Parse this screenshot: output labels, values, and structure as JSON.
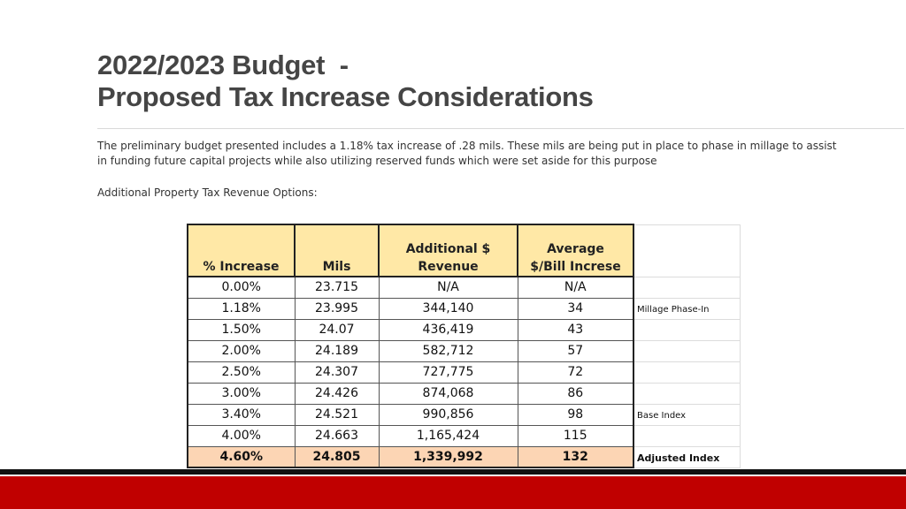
{
  "title": {
    "line1": "2022/2023 Budget  -",
    "line2": "Proposed Tax Increase Considerations"
  },
  "paragraph": "The preliminary budget presented includes a 1.18% tax increase of .28 mils.  These mils are being put in place to phase in millage to assist in funding future capital projects while also utilizing reserved funds which were set aside for this purpose",
  "options_label": "Additional Property Tax Revenue Options:",
  "table": {
    "headers": {
      "increase": "% Increase",
      "mils": "Mils",
      "revenue_l1": "Additional $",
      "revenue_l2": "Revenue",
      "bill_l1": "Average",
      "bill_l2": "$/Bill Increse"
    },
    "rows": [
      {
        "increase": "0.00%",
        "mils": "23.715",
        "revenue": "N/A",
        "bill": "N/A",
        "note": ""
      },
      {
        "increase": "1.18%",
        "mils": "23.995",
        "revenue": "344,140",
        "bill": "34",
        "note": "Millage Phase-In"
      },
      {
        "increase": "1.50%",
        "mils": "24.07",
        "revenue": "436,419",
        "bill": "43",
        "note": ""
      },
      {
        "increase": "2.00%",
        "mils": "24.189",
        "revenue": "582,712",
        "bill": "57",
        "note": ""
      },
      {
        "increase": "2.50%",
        "mils": "24.307",
        "revenue": "727,775",
        "bill": "72",
        "note": ""
      },
      {
        "increase": "3.00%",
        "mils": "24.426",
        "revenue": "874,068",
        "bill": "86",
        "note": ""
      },
      {
        "increase": "3.40%",
        "mils": "24.521",
        "revenue": "990,856",
        "bill": "98",
        "note": "Base Index"
      },
      {
        "increase": "4.00%",
        "mils": "24.663",
        "revenue": "1,165,424",
        "bill": "115",
        "note": ""
      },
      {
        "increase": "4.60%",
        "mils": "24.805",
        "revenue": "1,339,992",
        "bill": "132",
        "note": "Adjusted Index"
      }
    ]
  },
  "colors": {
    "header_fill": "#ffe8a6",
    "highlight_fill": "#fcd5b4",
    "footer_red": "#c00000"
  }
}
